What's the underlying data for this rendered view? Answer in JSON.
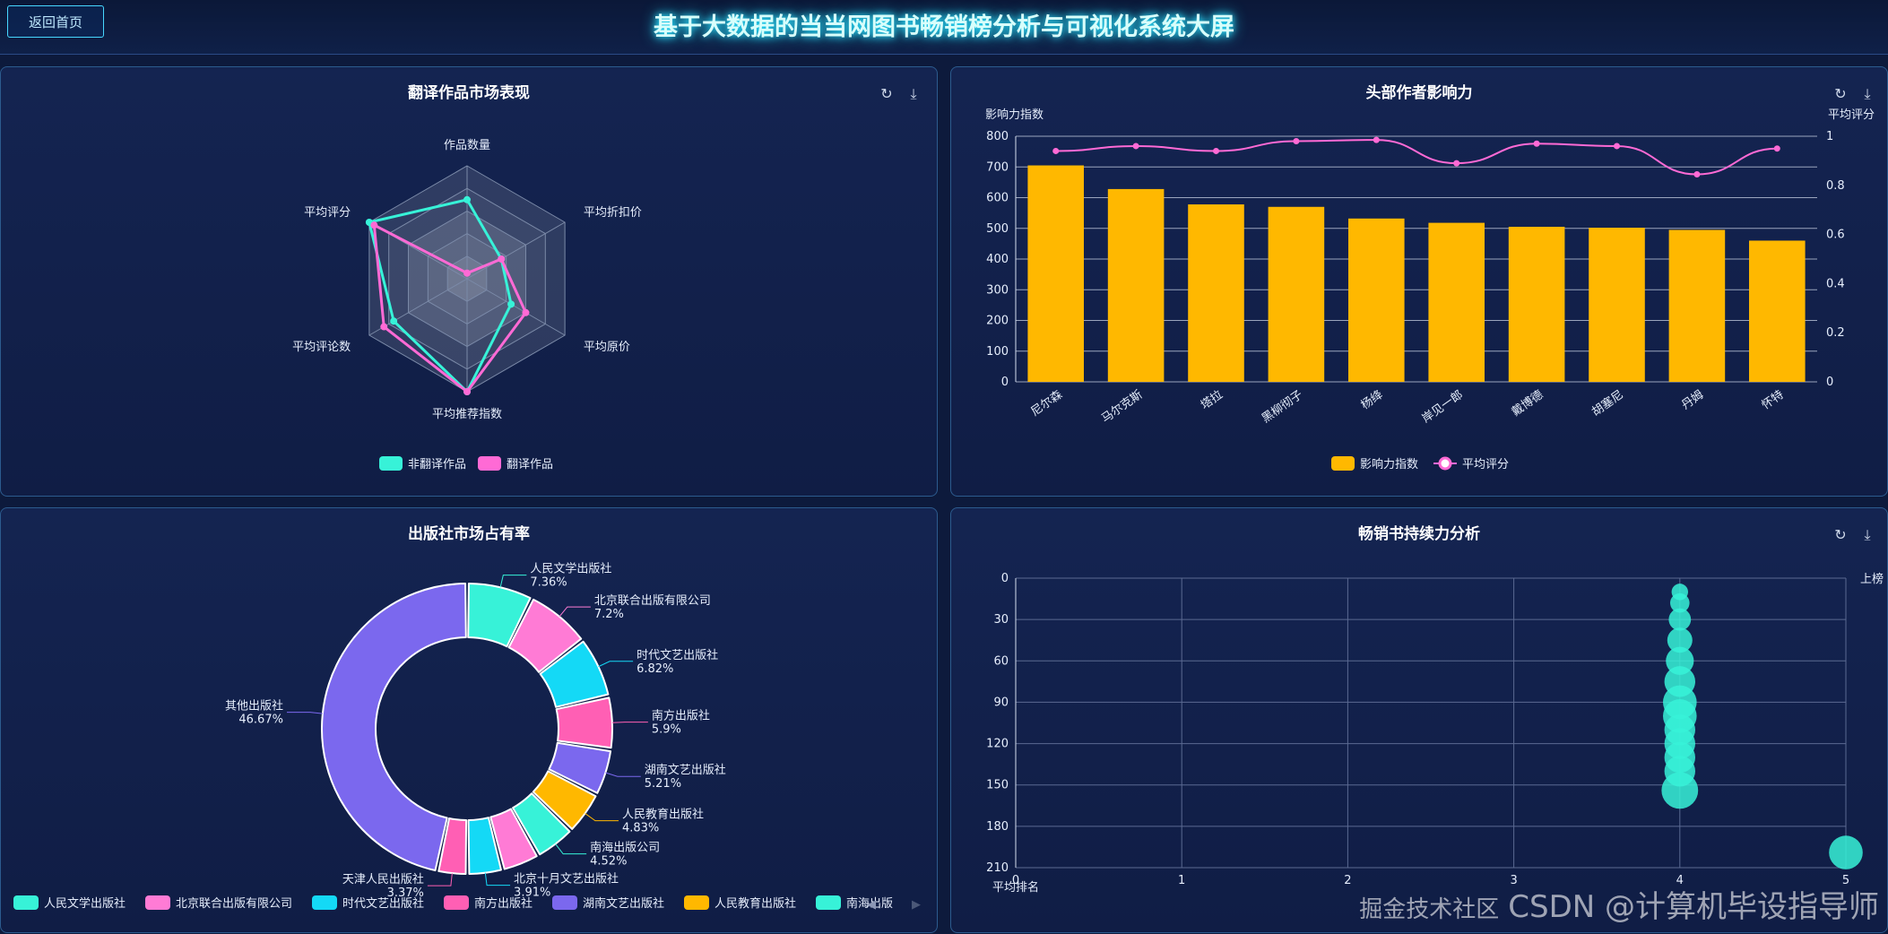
{
  "header": {
    "back_label": "返回首页",
    "title": "基于大数据的当当网图书畅销榜分析与可视化系统大屏"
  },
  "panels": {
    "radar": {
      "title": "翻译作品市场表现"
    },
    "author": {
      "title": "头部作者影响力"
    },
    "publisher": {
      "title": "出版社市场占有率"
    },
    "bestseller": {
      "title": "畅销书持续力分析"
    }
  },
  "watermark": "CSDN @计算机毕设指导师",
  "watermark2": "掘金技术社区",
  "colors": {
    "accent": "#37f2d8",
    "pink": "#ff6ad5",
    "gold": "#ffb800",
    "purple": "#7b68ee",
    "cyan": "#14d9f6",
    "rose": "#ff5fb4"
  },
  "chart_data": [
    {
      "type": "radar",
      "indicators": [
        "作品数量",
        "平均折扣价",
        "平均原价",
        "平均推荐指数",
        "平均评论数",
        "平均评分"
      ],
      "series": [
        {
          "name": "非翻译作品",
          "values": [
            0.7,
            0.35,
            0.45,
            1.0,
            0.75,
            1.0
          ],
          "color": "#37f2d8"
        },
        {
          "name": "翻译作品",
          "values": [
            0.05,
            0.35,
            0.6,
            1.0,
            0.85,
            0.95
          ],
          "color": "#ff6ad5"
        }
      ]
    },
    {
      "type": "bar",
      "categories": [
        "尼尔森",
        "马尔克斯",
        "塔拉",
        "黑柳彻子",
        "杨绛",
        "岸见一郎",
        "戴博德",
        "胡塞尼",
        "丹姆",
        "怀特"
      ],
      "series": [
        {
          "name": "影响力指数",
          "values": [
            705,
            628,
            578,
            570,
            532,
            518,
            505,
            502,
            495,
            460
          ],
          "color": "#ffb800"
        },
        {
          "name": "平均评分",
          "type": "line",
          "values": [
            0.94,
            0.96,
            0.94,
            0.98,
            0.985,
            0.89,
            0.97,
            0.96,
            0.845,
            0.95
          ],
          "color": "#ff6ad5"
        }
      ],
      "ylabel": "影响力指数",
      "ylabel_right": "平均评分",
      "ylim": [
        0,
        800
      ],
      "yticks": [
        0,
        100,
        200,
        300,
        400,
        500,
        600,
        700,
        800
      ],
      "ylim_right": [
        0,
        1
      ],
      "yticks_right": [
        "0",
        "0.2",
        "0.4",
        "0.6",
        "0.8",
        "1"
      ]
    },
    {
      "type": "pie",
      "slices": [
        {
          "name": "人民文学出版社",
          "percent": "7.36%",
          "value": 7.36,
          "color": "#37f2d8"
        },
        {
          "name": "北京联合出版有限公司",
          "percent": "7.2%",
          "value": 7.2,
          "color": "#ff7bd5"
        },
        {
          "name": "时代文艺出版社",
          "percent": "6.82%",
          "value": 6.82,
          "color": "#14d9f6"
        },
        {
          "name": "南方出版社",
          "percent": "5.9%",
          "value": 5.9,
          "color": "#ff5fb4"
        },
        {
          "name": "湖南文艺出版社",
          "percent": "5.21%",
          "value": 5.21,
          "color": "#7b68ee"
        },
        {
          "name": "人民教育出版社",
          "percent": "4.83%",
          "value": 4.83,
          "color": "#ffb800"
        },
        {
          "name": "南海出版公司",
          "percent": "4.52%",
          "value": 4.52,
          "color": "#37f2d8"
        },
        {
          "name": "",
          "percent": "",
          "value": 4.2,
          "color": "#ff7bd5"
        },
        {
          "name": "北京十月文艺出版社",
          "percent": "3.91%",
          "value": 3.91,
          "color": "#14d9f6"
        },
        {
          "name": "天津人民出版社",
          "percent": "3.37%",
          "value": 3.37,
          "color": "#ff5fb4"
        },
        {
          "name": "其他出版社",
          "percent": "46.67%",
          "value": 46.67,
          "color": "#7b68ee"
        }
      ],
      "legend_items": [
        "人民文学出版社",
        "北京联合出版有限公司",
        "时代文艺出版社",
        "南方出版社",
        "湖南文艺出版社",
        "人民教育出版社",
        "南海出版"
      ]
    },
    {
      "type": "scatter",
      "xlabel": "平均排名",
      "ylabel": "上榜",
      "xticks": [
        "0",
        "1",
        "2",
        "3",
        "4",
        "5"
      ],
      "yticks": [
        "0",
        "30",
        "60",
        "90",
        "120",
        "150",
        "180",
        "210"
      ],
      "xlim": [
        0,
        5
      ],
      "ylim": [
        0,
        210
      ],
      "y_inverted": true,
      "points": [
        {
          "x": 4,
          "y": 10,
          "size": 2
        },
        {
          "x": 4,
          "y": 18,
          "size": 3
        },
        {
          "x": 4,
          "y": 30,
          "size": 4
        },
        {
          "x": 4,
          "y": 45,
          "size": 5
        },
        {
          "x": 4,
          "y": 60,
          "size": 6
        },
        {
          "x": 4,
          "y": 75,
          "size": 7
        },
        {
          "x": 4,
          "y": 90,
          "size": 8
        },
        {
          "x": 4,
          "y": 100,
          "size": 8
        },
        {
          "x": 4,
          "y": 110,
          "size": 7
        },
        {
          "x": 4,
          "y": 120,
          "size": 7
        },
        {
          "x": 4,
          "y": 130,
          "size": 7
        },
        {
          "x": 4,
          "y": 140,
          "size": 7
        },
        {
          "x": 4,
          "y": 154,
          "size": 9
        },
        {
          "x": 5,
          "y": 199,
          "size": 8
        }
      ]
    }
  ]
}
